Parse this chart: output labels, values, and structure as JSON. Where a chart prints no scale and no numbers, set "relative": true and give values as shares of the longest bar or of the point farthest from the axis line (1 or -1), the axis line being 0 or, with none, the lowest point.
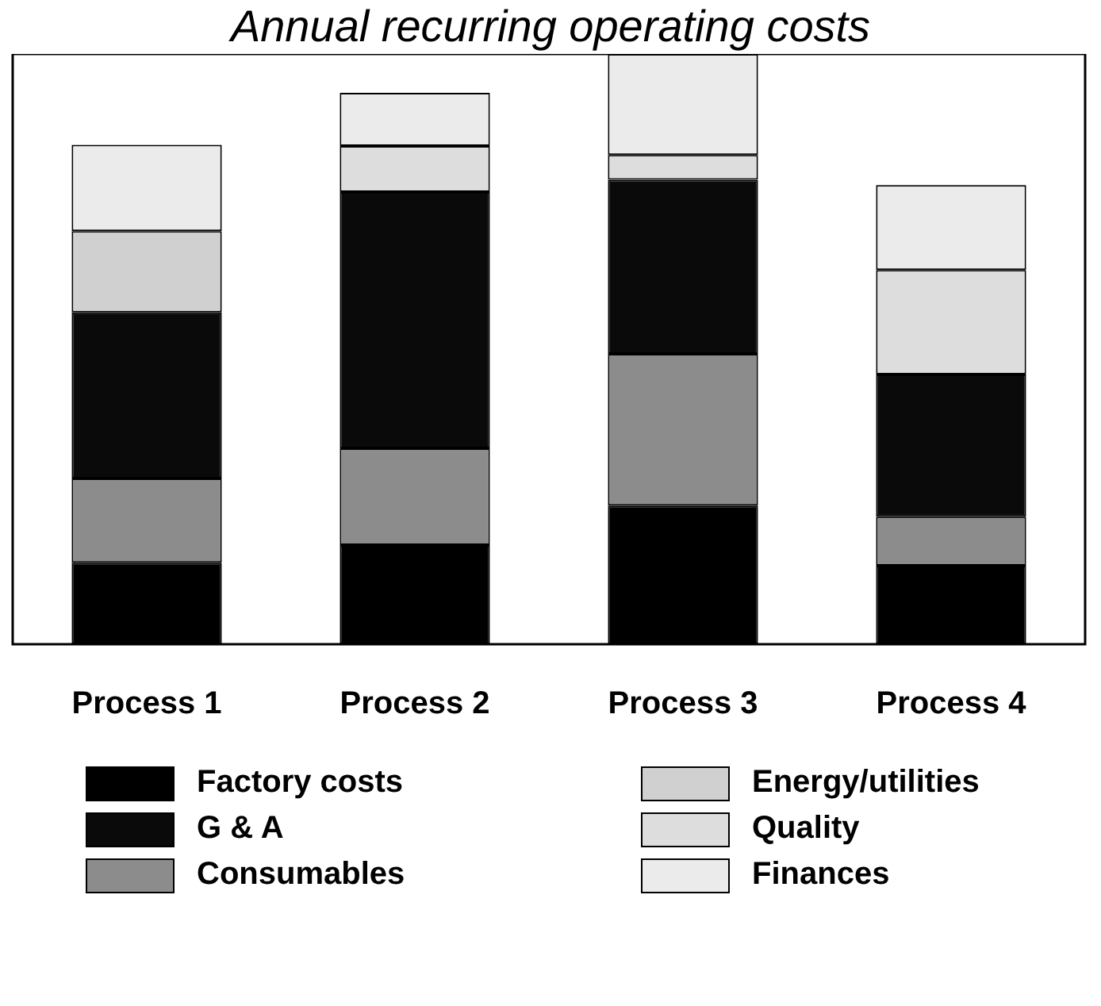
{
  "chart_data": {
    "type": "bar",
    "title": "Annual recurring operating costs",
    "stacked": true,
    "relative": true,
    "legend": "bottom",
    "categories": [
      "Process 1",
      "Process 2",
      "Process 3",
      "Process 4"
    ],
    "series": [
      {
        "name": "Factory costs",
        "color": "#000000",
        "values": [
          0.138,
          0.168,
          0.235,
          0.133
        ]
      },
      {
        "name": "Consumables",
        "color": "#8c8c8c",
        "values": [
          0.143,
          0.164,
          0.257,
          0.083
        ]
      },
      {
        "name": "G & A",
        "color": "#0a0a0a",
        "values": [
          0.281,
          0.434,
          0.295,
          0.241
        ]
      },
      {
        "name": "Energy/utilities",
        "color": "#d0d0d0",
        "values": [
          0.138,
          0,
          0,
          0
        ]
      },
      {
        "name": "Quality",
        "color": "#dddddd",
        "values": [
          0,
          0.078,
          0.042,
          0.177
        ]
      },
      {
        "name": "Finances",
        "color": "#ebebeb",
        "values": [
          0.146,
          0.09,
          0.171,
          0.144
        ]
      }
    ]
  }
}
